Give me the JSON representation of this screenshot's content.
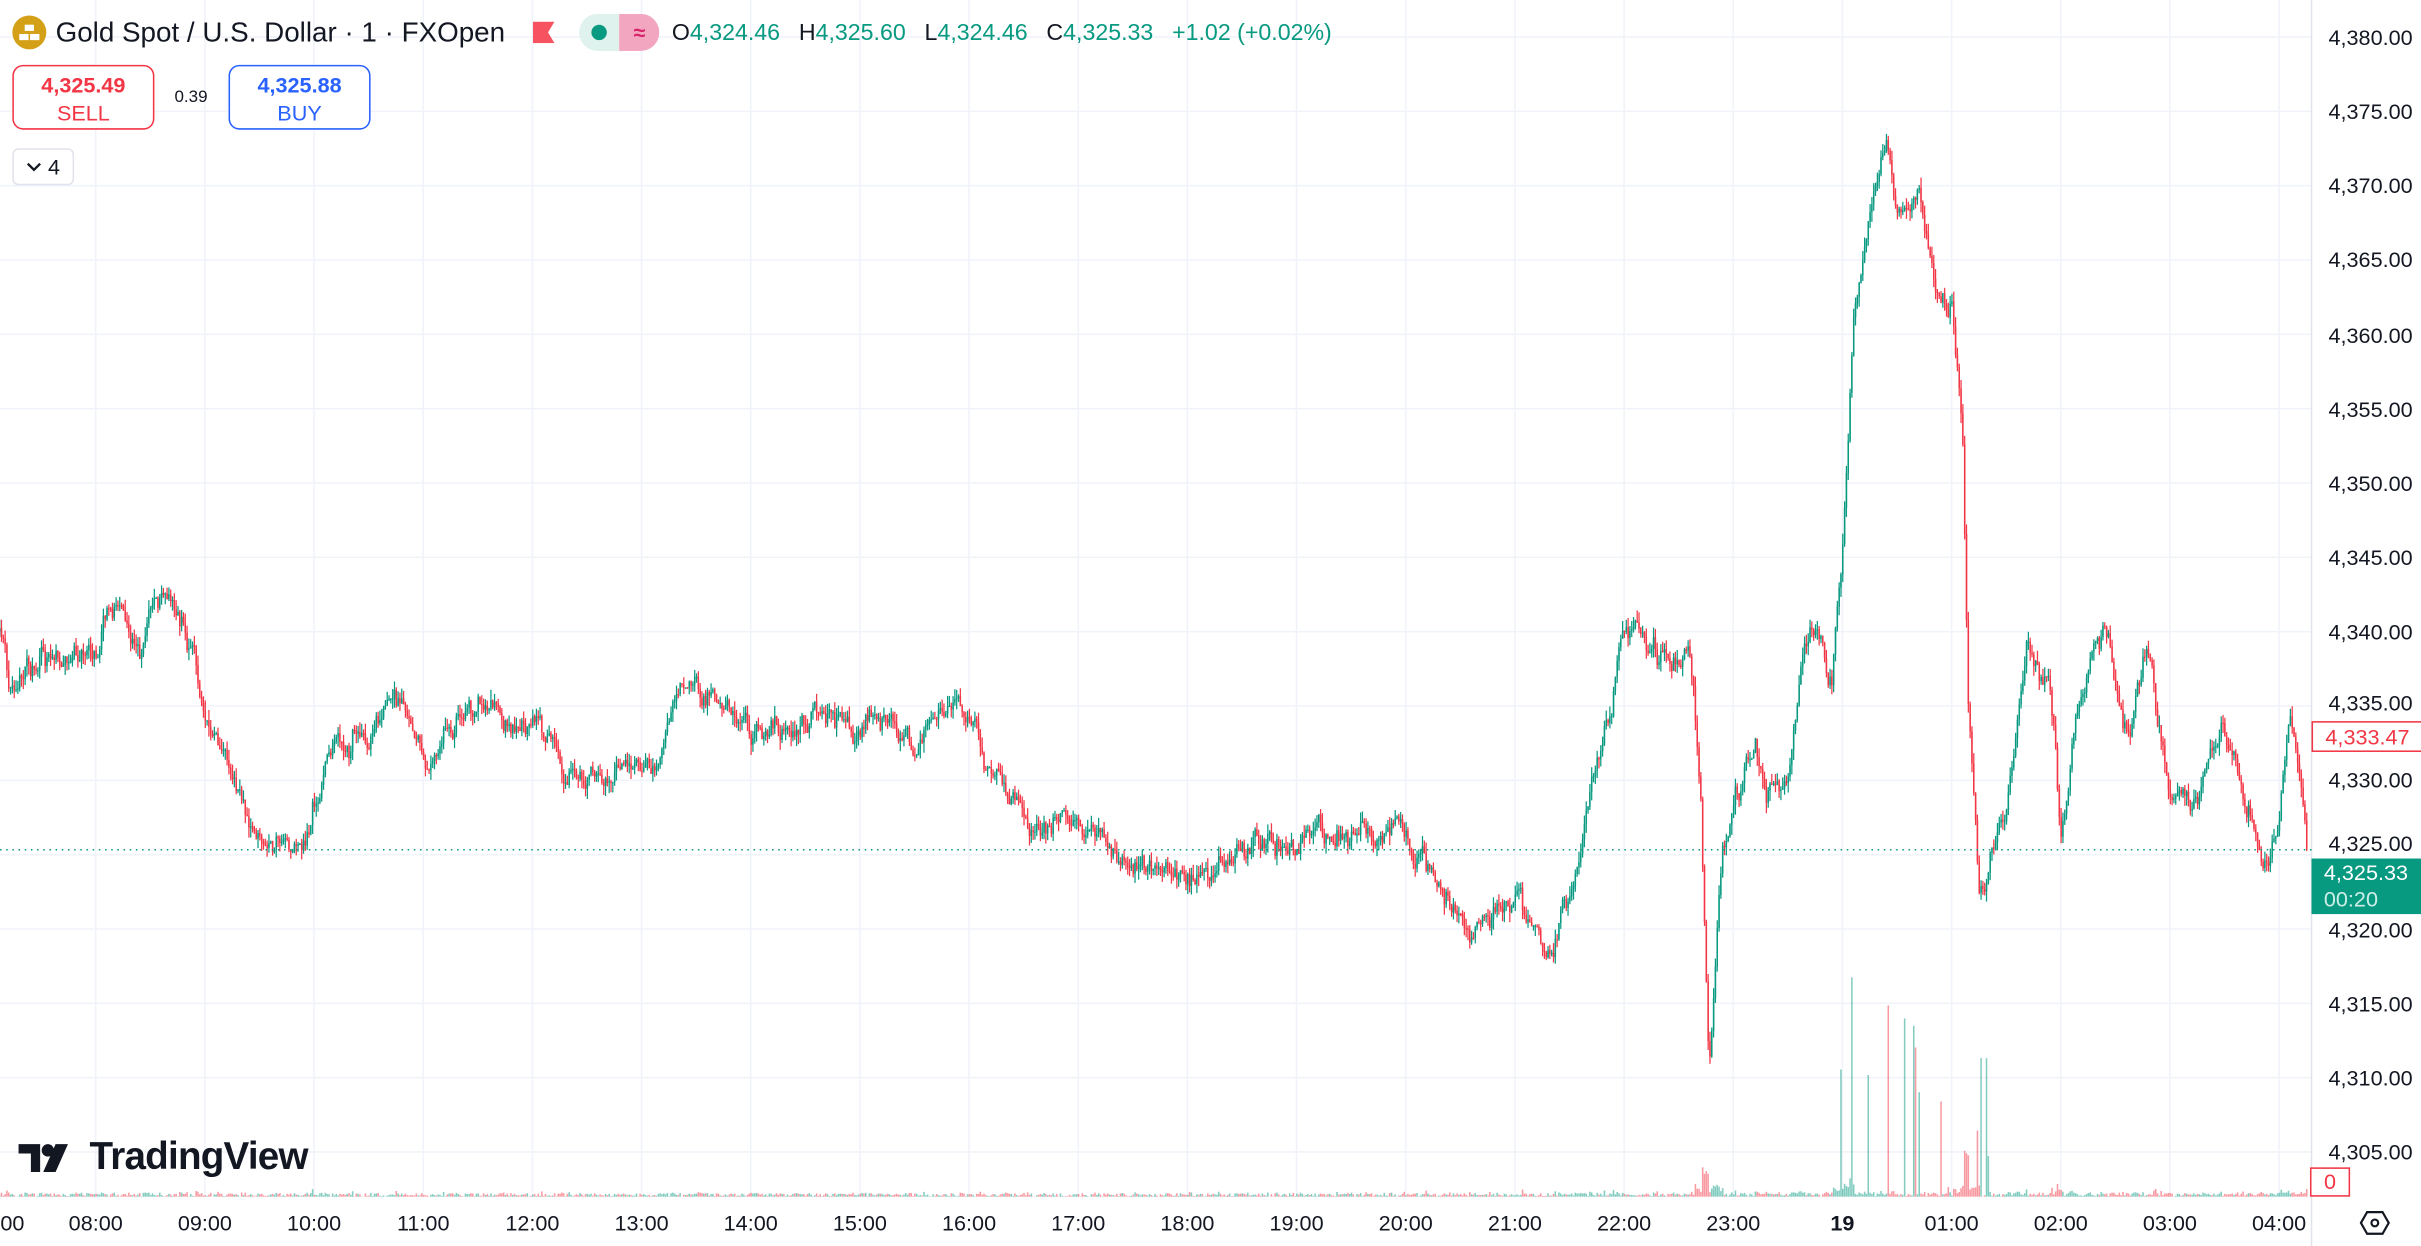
{
  "header": {
    "title": "Gold Spot / U.S. Dollar · 1 · FXOpen",
    "ohlc": {
      "o_label": "O",
      "o": "4,324.46",
      "h_label": "H",
      "h": "4,325.60",
      "l_label": "L",
      "l": "4,324.46",
      "c_label": "C",
      "c": "4,325.33",
      "change": "+1.02 (+0.02%)"
    }
  },
  "trade": {
    "sell_price": "4,325.49",
    "sell_label": "SELL",
    "spread": "0.39",
    "buy_price": "4,325.88",
    "buy_label": "BUY"
  },
  "indicators_toggle": {
    "count": "4"
  },
  "logo": {
    "text": "TradingView"
  },
  "price_scale": {
    "last_price": "4,325.33",
    "countdown": "00:20",
    "marker_price": "4,333.47",
    "volume_label": "0"
  },
  "colors": {
    "up": "#089981",
    "down": "#f23645",
    "grid": "#f0f3fa",
    "buy": "#2962ff"
  },
  "chart_data": {
    "type": "candlestick",
    "title": "Gold Spot / U.S. Dollar · 1 · FXOpen",
    "ylim": [
      4303,
      4381
    ],
    "y_ticks": [
      "4,380.00",
      "4,375.00",
      "4,370.00",
      "4,365.00",
      "4,360.00",
      "4,355.00",
      "4,350.00",
      "4,345.00",
      "4,340.00",
      "4,335.00",
      "4,330.00",
      "4,325.00",
      "4,320.00",
      "4,315.00",
      "4,310.00",
      "4,305.00"
    ],
    "y_tick_values": [
      4380,
      4375,
      4370,
      4365,
      4360,
      4355,
      4350,
      4345,
      4340,
      4335,
      4330,
      4325,
      4320,
      4315,
      4310,
      4305
    ],
    "x_ticks": [
      "00",
      "08:00",
      "09:00",
      "10:00",
      "11:00",
      "12:00",
      "13:00",
      "14:00",
      "15:00",
      "16:00",
      "17:00",
      "18:00",
      "19:00",
      "20:00",
      "21:00",
      "22:00",
      "23:00",
      "19",
      "01:00",
      "02:00",
      "03:00",
      "04:00"
    ],
    "x_tick_hours": [
      -1,
      0,
      1,
      2,
      3,
      4,
      5,
      6,
      7,
      8,
      9,
      10,
      11,
      12,
      13,
      14,
      15,
      16,
      17,
      18,
      19,
      20
    ],
    "x_range_hours": [
      -0.88,
      20.27
    ],
    "price_path": [
      [
        -0.88,
        4340
      ],
      [
        -0.8,
        4336
      ],
      [
        -0.5,
        4338
      ],
      [
        0,
        4339
      ],
      [
        0.2,
        4342
      ],
      [
        0.4,
        4338
      ],
      [
        0.55,
        4342
      ],
      [
        0.9,
        4339
      ],
      [
        1.0,
        4334
      ],
      [
        1.3,
        4330
      ],
      [
        1.5,
        4325
      ],
      [
        1.8,
        4325
      ],
      [
        2.3,
        4333
      ],
      [
        2.8,
        4336
      ],
      [
        3.0,
        4331
      ],
      [
        3.5,
        4335
      ],
      [
        4.0,
        4333
      ],
      [
        4.4,
        4330
      ],
      [
        5.0,
        4331
      ],
      [
        5.5,
        4336
      ],
      [
        6.0,
        4333
      ],
      [
        6.5,
        4334
      ],
      [
        7.0,
        4334
      ],
      [
        7.5,
        4332
      ],
      [
        7.9,
        4336
      ],
      [
        8.0,
        4334
      ],
      [
        8.3,
        4328
      ],
      [
        8.5,
        4327
      ],
      [
        9.0,
        4327
      ],
      [
        9.5,
        4325
      ],
      [
        10.0,
        4323
      ],
      [
        10.5,
        4325
      ],
      [
        11.0,
        4326
      ],
      [
        11.3,
        4327
      ],
      [
        12.0,
        4326
      ],
      [
        12.3,
        4323
      ],
      [
        12.6,
        4319
      ],
      [
        13.0,
        4322
      ],
      [
        13.3,
        4318
      ],
      [
        13.5,
        4322
      ],
      [
        13.8,
        4333
      ],
      [
        14.0,
        4340
      ],
      [
        14.4,
        4338
      ],
      [
        14.6,
        4339
      ],
      [
        14.7,
        4329
      ],
      [
        14.78,
        4311
      ],
      [
        14.9,
        4325
      ],
      [
        15.0,
        4328
      ],
      [
        15.2,
        4333
      ],
      [
        15.3,
        4328
      ],
      [
        15.5,
        4331
      ],
      [
        15.7,
        4340
      ],
      [
        15.9,
        4336
      ],
      [
        16.0,
        4345
      ],
      [
        16.1,
        4360
      ],
      [
        16.25,
        4369
      ],
      [
        16.4,
        4373
      ],
      [
        16.5,
        4368
      ],
      [
        16.7,
        4370
      ],
      [
        16.85,
        4365
      ],
      [
        17.0,
        4362
      ],
      [
        17.1,
        4353
      ],
      [
        17.15,
        4335
      ],
      [
        17.25,
        4322
      ],
      [
        17.5,
        4328
      ],
      [
        17.7,
        4339
      ],
      [
        17.9,
        4336
      ],
      [
        18.0,
        4326
      ],
      [
        18.2,
        4337
      ],
      [
        18.4,
        4340
      ],
      [
        18.6,
        4333
      ],
      [
        18.8,
        4339
      ],
      [
        19.0,
        4329
      ],
      [
        19.2,
        4329
      ],
      [
        19.5,
        4333
      ],
      [
        19.7,
        4329
      ],
      [
        19.9,
        4323
      ],
      [
        20.0,
        4328
      ],
      [
        20.1,
        4335
      ],
      [
        20.27,
        4325.33
      ]
    ],
    "last_close": 4325.33
  }
}
